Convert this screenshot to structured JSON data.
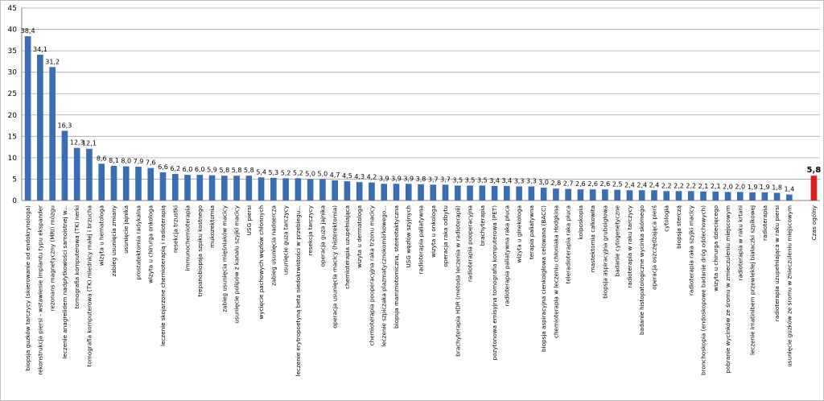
{
  "chart_data": {
    "type": "bar",
    "title": "",
    "xlabel": "",
    "ylabel": "",
    "ylim": [
      0,
      45
    ],
    "yticks": [
      "0",
      "5",
      "10",
      "15",
      "20",
      "25",
      "30",
      "35",
      "40",
      "45"
    ],
    "grid": true,
    "legend": "none",
    "colors": {
      "bar": "#3a6db3",
      "bar_highlight": "#e01b1b"
    },
    "highlight_index": 64,
    "categories": [
      "biopsja guzków tarczycy (skierowanie od endokrynologa)",
      "rekonstrukcja piersi - wstawienie implantu typu ekspander",
      "rezonans magnetyczny (MRI) mózgu",
      "leczenie anagrelidem nadpłytkowości samoistnej w...",
      "tomografia komputerowa (TK) nerki",
      "tomografia komputerowa (TK) miednicy małej i brzucha",
      "wizyta u hematologa",
      "zabieg usunięcia zmiany",
      "usunięcie jajnika",
      "prostatektomia radykalna",
      "wizyta u chirurga onkologa",
      "leczenie skojarzone chemioterapią i radioterapią",
      "resekcja trzustki",
      "immunochemioterapia",
      "trepanobiopsja szpiku kostnego",
      "mukozektomia",
      "zabieg usunięcia mięśniaków macicy",
      "usunięcie polipów z kanału szyjki macicy",
      "USG piersi",
      "wycięcie pachowych węzłów chłonnych",
      "zabieg usunięcia nadnercza",
      "usunięcie guza tarczycy",
      "leczenie erytropoetyną beta niedokrwistości w przebiegu...",
      "resekcja tarczycy",
      "operacja guza jajnika",
      "operacja usunięcia macicy (histerektomia)",
      "chemioterapia uzupełniająca",
      "wizyta u dermatologa",
      "chemioterapia pooperacyjna raka trzonu macicy",
      "leczenie szpiczaka plazmatycznokomórkowego...",
      "biopsja mammotomiczna, stereotaktyczna",
      "USG węzłów szyjnych",
      "radioterapia paliatywna",
      "wizyta u onkologa",
      "operacja raka odbytu",
      "brachyterapia HDR (metoda leczenia w radioterapii)",
      "radioterapia pooperacyjna",
      "brachyterapia",
      "pozytonowa emisyjna tomografia komputerowa (PET)",
      "radioterapia paliatywna raka płuca",
      "wizyta u ginekologa",
      "terapia paliatywna",
      "biopsja aspiracyjna cienkoigłowa celowana (BACC)",
      "chemioterapia w leczeniu chłoniaka Hodgkina",
      "teleradioterapia raka płuca",
      "kolposkopia",
      "mastektomia całkowita",
      "biopsja aspiracyjna gruboigłowa",
      "badanie cytogenetyczne",
      "radioterapia w raku tarczycy",
      "badanie histopatologiczne wycinka skórnego",
      "operacja oszczędzająca pierś",
      "cytologia",
      "biopsja sterczą",
      "radioterapia raka szyjki macicy",
      "bronchoskopia (endoskopowe badanie dróg oddechowych)",
      "wizyta u chirurga dziecięcego",
      "pobranie wycinków ze śromu w zmieczuleniu miejscowym",
      "radioterapia w raku krtani",
      "leczenie imatinibem przewlekłej białaczki szpikowej",
      "radioterapia",
      "radioterapia uzupełniająca w raku piersi",
      "usunięcie guzków ze sromu w znieczuleniu miejscowym",
      "",
      "Czas ogólny"
    ],
    "values": [
      38.4,
      34.1,
      31.2,
      16.3,
      12.3,
      12.1,
      8.6,
      8.1,
      8.0,
      7.9,
      7.6,
      6.6,
      6.2,
      6.0,
      6.0,
      5.9,
      5.8,
      5.8,
      5.8,
      5.4,
      5.3,
      5.2,
      5.2,
      5.0,
      5.0,
      4.7,
      4.5,
      4.3,
      4.2,
      3.9,
      3.9,
      3.9,
      3.8,
      3.7,
      3.7,
      3.5,
      3.5,
      3.5,
      3.4,
      3.4,
      3.3,
      3.3,
      3.0,
      2.8,
      2.7,
      2.6,
      2.6,
      2.6,
      2.5,
      2.4,
      2.4,
      2.4,
      2.2,
      2.2,
      2.2,
      2.1,
      2.1,
      2.0,
      2.0,
      1.9,
      1.9,
      1.8,
      1.4,
      0,
      5.8
    ],
    "value_labels": [
      "38,4",
      "34,1",
      "31,2",
      "16,3",
      "12,3",
      "12,1",
      "8,6",
      "8,1",
      "8,0",
      "7,9",
      "7,6",
      "6,6",
      "6,2",
      "6,0",
      "6,0",
      "5,9",
      "5,8",
      "5,8",
      "5,8",
      "5,4",
      "5,3",
      "5,2",
      "5,2",
      "5,0",
      "5,0",
      "4,7",
      "4,5",
      "4,3",
      "4,2",
      "3,9",
      "3,9",
      "3,9",
      "3,8",
      "3,7",
      "3,7",
      "3,5",
      "3,5",
      "3,5",
      "3,4",
      "3,4",
      "3,3",
      "3,3",
      "3,0",
      "2,8",
      "2,7",
      "2,6",
      "2,6",
      "2,6",
      "2,5",
      "2,4",
      "2,4",
      "2,4",
      "2,2",
      "2,2",
      "2,2",
      "2,1",
      "2,1",
      "2,0",
      "2,0",
      "1,9",
      "1,9",
      "1,8",
      "1,4",
      "",
      "5,8"
    ]
  }
}
